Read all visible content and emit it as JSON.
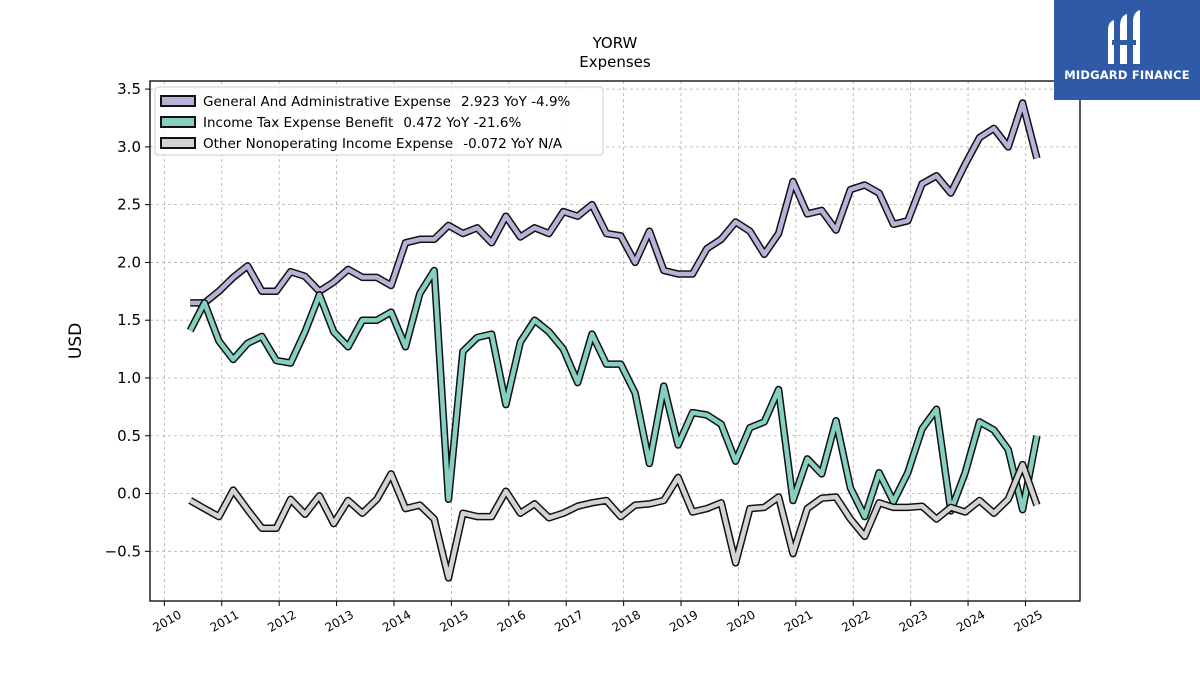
{
  "brand": {
    "name": "MIDGARD FINANCE",
    "color": "#2f5aa8"
  },
  "chart_data": {
    "type": "line",
    "title": "YORW",
    "subtitle": "Expenses",
    "xlabel": "",
    "ylabel": "USD",
    "xlim": [
      2009.75,
      2025.95
    ],
    "ylim": [
      -0.93,
      3.57
    ],
    "xticks": [
      2010,
      2011,
      2012,
      2013,
      2014,
      2015,
      2016,
      2017,
      2018,
      2019,
      2020,
      2021,
      2022,
      2023,
      2024,
      2025
    ],
    "yticks": [
      -0.5,
      0.0,
      0.5,
      1.0,
      1.5,
      2.0,
      2.5,
      3.0,
      3.5
    ],
    "ytick_labels": [
      "−0.5",
      "0.0",
      "0.5",
      "1.0",
      "1.5",
      "2.0",
      "2.5",
      "3.0",
      "3.5"
    ],
    "grid": true,
    "legend_position": "top-left",
    "x": [
      2010.45,
      2010.7,
      2010.95,
      2011.2,
      2011.45,
      2011.7,
      2011.95,
      2012.2,
      2012.45,
      2012.7,
      2012.95,
      2013.2,
      2013.45,
      2013.7,
      2013.95,
      2014.2,
      2014.45,
      2014.7,
      2014.95,
      2015.2,
      2015.45,
      2015.7,
      2015.95,
      2016.2,
      2016.45,
      2016.7,
      2016.95,
      2017.2,
      2017.45,
      2017.7,
      2017.95,
      2018.2,
      2018.45,
      2018.7,
      2018.95,
      2019.2,
      2019.45,
      2019.7,
      2019.95,
      2020.2,
      2020.45,
      2020.7,
      2020.95,
      2021.2,
      2021.45,
      2021.7,
      2021.95,
      2022.2,
      2022.45,
      2022.7,
      2022.95,
      2023.2,
      2023.45,
      2023.7,
      2023.95,
      2024.2,
      2024.45,
      2024.7,
      2024.95,
      2025.2
    ],
    "series": [
      {
        "name": "General And Administrative Expense",
        "summary": "2.923 YoY -4.9%",
        "color": "#b7b3d8",
        "values": [
          1.65,
          1.65,
          1.75,
          1.87,
          1.97,
          1.75,
          1.75,
          1.92,
          1.88,
          1.75,
          1.83,
          1.94,
          1.87,
          1.87,
          1.8,
          2.17,
          2.2,
          2.2,
          2.32,
          2.25,
          2.3,
          2.17,
          2.4,
          2.22,
          2.3,
          2.25,
          2.44,
          2.4,
          2.5,
          2.25,
          2.23,
          2.0,
          2.27,
          1.93,
          1.9,
          1.9,
          2.12,
          2.2,
          2.35,
          2.27,
          2.07,
          2.25,
          2.7,
          2.42,
          2.45,
          2.28,
          2.63,
          2.67,
          2.6,
          2.33,
          2.36,
          2.68,
          2.75,
          2.6,
          2.85,
          3.08,
          3.16,
          3.0,
          3.38,
          2.9
        ]
      },
      {
        "name": "Income Tax Expense Benefit",
        "summary": "0.472 YoY -21.6%",
        "color": "#86cfc1",
        "values": [
          1.41,
          1.65,
          1.32,
          1.16,
          1.3,
          1.36,
          1.15,
          1.13,
          1.4,
          1.72,
          1.4,
          1.27,
          1.5,
          1.5,
          1.57,
          1.27,
          1.73,
          1.93,
          -0.05,
          1.23,
          1.35,
          1.38,
          0.77,
          1.31,
          1.5,
          1.4,
          1.25,
          0.96,
          1.38,
          1.12,
          1.12,
          0.87,
          0.26,
          0.93,
          0.42,
          0.7,
          0.68,
          0.6,
          0.28,
          0.57,
          0.62,
          0.9,
          -0.06,
          0.3,
          0.17,
          0.63,
          0.05,
          -0.2,
          0.18,
          -0.07,
          0.18,
          0.56,
          0.73,
          -0.15,
          0.18,
          0.62,
          0.55,
          0.38,
          -0.14,
          0.5
        ]
      },
      {
        "name": "Other Nonoperating Income Expense",
        "summary": "-0.072 YoY N/A",
        "color": "#d3d3d3",
        "values": [
          -0.06,
          -0.13,
          -0.2,
          0.03,
          -0.14,
          -0.3,
          -0.3,
          -0.05,
          -0.18,
          -0.02,
          -0.26,
          -0.06,
          -0.17,
          -0.05,
          0.17,
          -0.13,
          -0.1,
          -0.22,
          -0.73,
          -0.17,
          -0.2,
          -0.2,
          0.02,
          -0.17,
          -0.09,
          -0.21,
          -0.17,
          -0.11,
          -0.08,
          -0.06,
          -0.2,
          -0.1,
          -0.09,
          -0.06,
          0.14,
          -0.16,
          -0.13,
          -0.08,
          -0.6,
          -0.13,
          -0.12,
          -0.03,
          -0.52,
          -0.13,
          -0.04,
          -0.03,
          -0.22,
          -0.37,
          -0.08,
          -0.12,
          -0.12,
          -0.11,
          -0.22,
          -0.12,
          -0.16,
          -0.06,
          -0.17,
          -0.05,
          0.25,
          -0.1
        ]
      }
    ]
  }
}
